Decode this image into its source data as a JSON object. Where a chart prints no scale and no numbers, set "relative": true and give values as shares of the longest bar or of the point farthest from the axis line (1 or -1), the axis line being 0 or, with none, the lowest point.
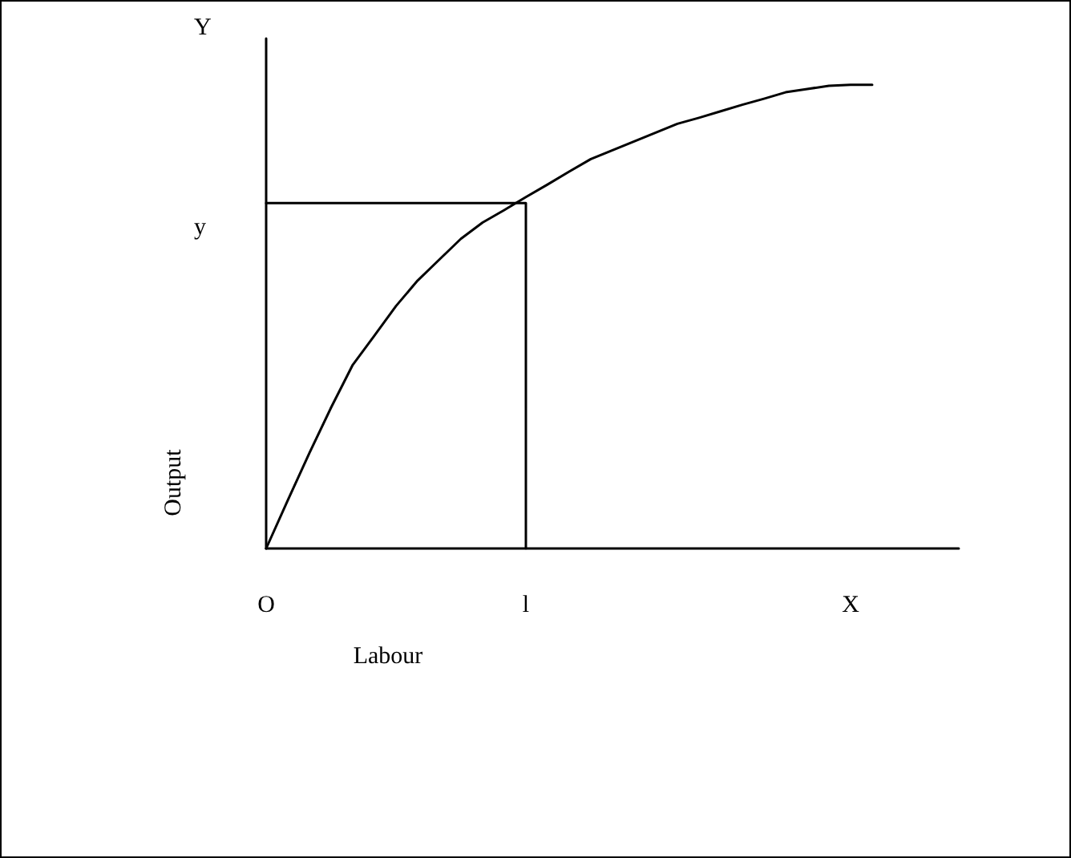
{
  "chart_data": {
    "type": "line",
    "xlabel": "Labour",
    "ylabel": "Output",
    "relative": true,
    "categories": [
      "O",
      null,
      null,
      null,
      null,
      null,
      null,
      null,
      null,
      null,
      null,
      null,
      "l",
      null,
      null,
      null,
      null,
      null,
      null,
      null,
      null,
      null,
      null,
      null,
      null,
      null,
      null,
      "X",
      null,
      null,
      null,
      null,
      null
    ],
    "series": [
      {
        "color": "#000000",
        "values": [
          0,
          0.104,
          0.206,
          0.304,
          0.396,
          0.459,
          0.523,
          0.578,
          0.623,
          0.668,
          0.703,
          0.73,
          0.758,
          0.785,
          0.813,
          0.84,
          0.859,
          0.878,
          0.897,
          0.916,
          0.929,
          0.943,
          0.957,
          0.97,
          0.984,
          0.991,
          0.998,
          1,
          1,
          null,
          null,
          null,
          null
        ]
      },
      {
        "color": "#000000",
        "x": [
          "O",
          "l",
          "l"
        ],
        "values": [
          0.745,
          0.745,
          0
        ]
      }
    ],
    "annotations": [
      "Y",
      "y"
    ],
    "grid": false,
    "marker": "none",
    "line_style": "solid"
  }
}
